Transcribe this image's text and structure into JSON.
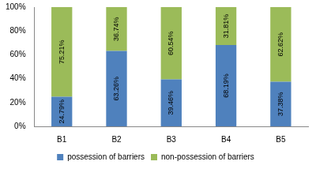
{
  "chart_data": {
    "type": "bar",
    "stacked": true,
    "categories": [
      "B1",
      "B2",
      "B3",
      "B4",
      "B5"
    ],
    "series": [
      {
        "name": "possession of barriers",
        "color": "#4f81bd",
        "values": [
          24.79,
          63.26,
          39.46,
          68.19,
          37.38
        ],
        "value_labels": [
          "24.79%",
          "63.26%",
          "39.46%",
          "68.19%",
          "37.38%"
        ]
      },
      {
        "name": "non-possession of barriers",
        "color": "#9bbb59",
        "values": [
          75.21,
          36.74,
          60.54,
          31.81,
          62.62
        ],
        "value_labels": [
          "75.21%",
          "36.74%",
          "60.54%",
          "31.81%",
          "62.62%"
        ]
      }
    ],
    "ylim": [
      0,
      100
    ],
    "yticks": [
      {
        "value": 0,
        "label": "0%"
      },
      {
        "value": 20,
        "label": "20%"
      },
      {
        "value": 40,
        "label": "40%"
      },
      {
        "value": 60,
        "label": "60%"
      },
      {
        "value": 80,
        "label": "80%"
      },
      {
        "value": 100,
        "label": "100%"
      }
    ],
    "grid": false,
    "legend": "bottom",
    "data_labels": true
  }
}
